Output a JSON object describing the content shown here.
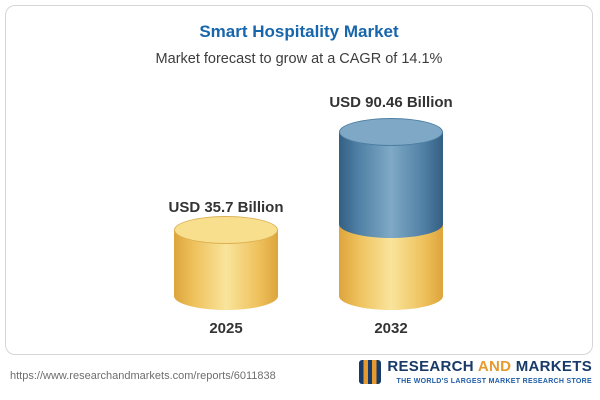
{
  "header": {
    "title": "Smart Hospitality Market",
    "subtitle": "Market forecast to grow at a CAGR of 14.1%"
  },
  "chart_data": {
    "type": "bar",
    "style": "3d-cylinder",
    "categories": [
      "2025",
      "2032"
    ],
    "values": [
      35.7,
      90.46
    ],
    "value_labels": [
      "USD 35.7 Billion",
      "USD 90.46 Billion"
    ],
    "unit": "USD Billion",
    "title": "Smart Hospitality Market",
    "subtitle": "Market forecast to grow at a CAGR of 14.1%",
    "cagr": "14.1%",
    "legend": "none",
    "grid": false,
    "colors": {
      "bar_2025": "#f2cd68",
      "bar_2032_top": "#5f8cb0",
      "bar_2032_bottom": "#f2cd68",
      "title_text": "#1766ab",
      "label_text": "#333333"
    }
  },
  "footer": {
    "url": "https://www.researchandmarkets.com/reports/6011838",
    "logo": {
      "research": "RESEARCH",
      "and": "AND",
      "markets": "MARKETS",
      "tagline": "THE WORLD'S LARGEST MARKET RESEARCH STORE"
    }
  }
}
